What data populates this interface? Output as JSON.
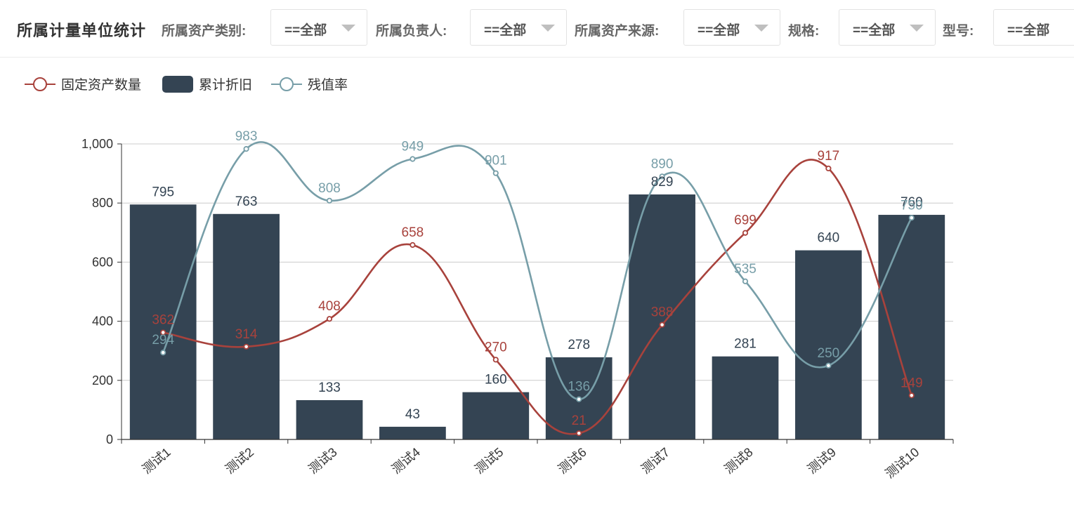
{
  "header": {
    "title": "所属计量单位统计",
    "filters": [
      {
        "label": "所属资产类别:",
        "value": "==全部"
      },
      {
        "label": "所属负责人:",
        "value": "==全部"
      },
      {
        "label": "所属资产来源:",
        "value": "==全部"
      },
      {
        "label": "规格:",
        "value": "==全部"
      },
      {
        "label": "型号:",
        "value": "==全部"
      }
    ]
  },
  "colors": {
    "count_line": "#a8423c",
    "depreciation_bar": "#344453",
    "residual_line": "#779ea8",
    "grid": "#cccccc",
    "axis": "#333333"
  },
  "chart_data": {
    "type": "bar",
    "categories": [
      "测试1",
      "测试2",
      "测试3",
      "测试4",
      "测试5",
      "测试6",
      "测试7",
      "测试8",
      "测试9",
      "测试10"
    ],
    "series": [
      {
        "name": "固定资产数量",
        "type": "line",
        "smooth": true,
        "values": [
          362,
          314,
          408,
          658,
          270,
          21,
          388,
          699,
          917,
          149
        ]
      },
      {
        "name": "累计折旧",
        "type": "bar",
        "values": [
          795,
          763,
          133,
          43,
          160,
          278,
          829,
          281,
          640,
          760
        ]
      },
      {
        "name": "残值率",
        "type": "line",
        "smooth": true,
        "values": [
          294,
          983,
          808,
          949,
          901,
          136,
          890,
          535,
          250,
          750
        ]
      }
    ],
    "ylim": [
      0,
      1000
    ],
    "yticks": [
      0,
      200,
      400,
      600,
      800,
      1000
    ],
    "ytick_labels": [
      "0",
      "200",
      "400",
      "600",
      "800",
      "1,000"
    ],
    "grid": true,
    "legend_position": "top-left",
    "data_labels": true
  }
}
